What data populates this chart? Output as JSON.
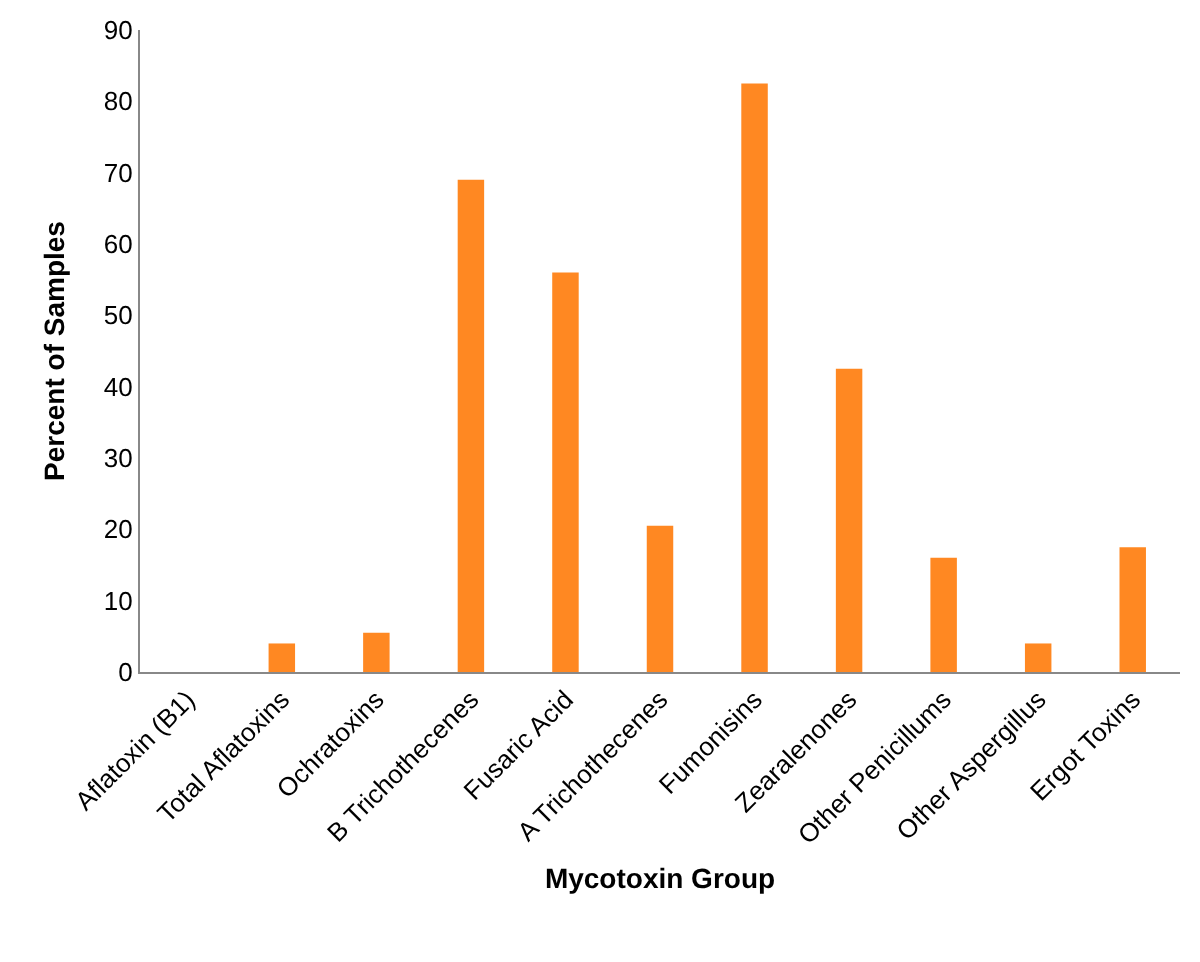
{
  "chart_data": {
    "type": "bar",
    "xlabel": "Mycotoxin Group",
    "ylabel": "Percent of Samples",
    "categories": [
      "Aflatoxin (B1)",
      "Total Aflatoxins",
      "Ochratoxins",
      "B Trichothecenes",
      "Fusaric Acid",
      "A Trichothecenes",
      "Fumonisins",
      "Zearalenones",
      "Other Penicillums",
      "Other Aspergillus",
      "Ergot Toxins"
    ],
    "values": [
      0,
      4,
      5.5,
      69,
      56,
      20.5,
      82.5,
      42.5,
      16,
      4,
      17.5
    ],
    "color": "#ff8822",
    "ylim": [
      0,
      90
    ],
    "yticks": [
      0,
      10,
      20,
      30,
      40,
      50,
      60,
      70,
      80,
      90
    ],
    "grid": false,
    "legend": false
  }
}
